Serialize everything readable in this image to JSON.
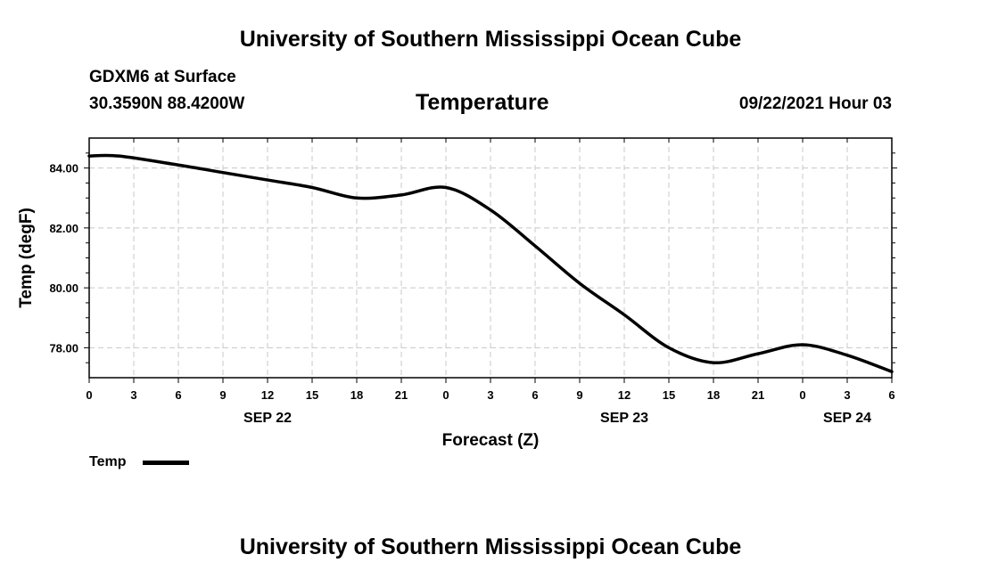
{
  "header": {
    "org_title_top": "University of Southern Mississippi Ocean Cube",
    "station": "GDXM6 at Surface",
    "coords": "30.3590N  88.4200W",
    "datetime": "09/22/2021 Hour 03",
    "org_title_bottom": "University of Southern Mississippi Ocean Cube"
  },
  "chart_data": {
    "type": "line",
    "title": "Temperature",
    "xlabel": "Forecast (Z)",
    "ylabel": "Temp (degF)",
    "x_unit": "forecast hours from 00Z SEP 22",
    "xlim": [
      0,
      54
    ],
    "ylim": [
      77.0,
      85.0
    ],
    "grid": true,
    "x_ticks": [
      {
        "x": 0,
        "label": "0"
      },
      {
        "x": 3,
        "label": "3"
      },
      {
        "x": 6,
        "label": "6"
      },
      {
        "x": 9,
        "label": "9"
      },
      {
        "x": 12,
        "label": "12"
      },
      {
        "x": 15,
        "label": "15"
      },
      {
        "x": 18,
        "label": "18"
      },
      {
        "x": 21,
        "label": "21"
      },
      {
        "x": 24,
        "label": "0"
      },
      {
        "x": 27,
        "label": "3"
      },
      {
        "x": 30,
        "label": "6"
      },
      {
        "x": 33,
        "label": "9"
      },
      {
        "x": 36,
        "label": "12"
      },
      {
        "x": 39,
        "label": "15"
      },
      {
        "x": 42,
        "label": "18"
      },
      {
        "x": 45,
        "label": "21"
      },
      {
        "x": 48,
        "label": "0"
      },
      {
        "x": 51,
        "label": "3"
      },
      {
        "x": 54,
        "label": "6"
      }
    ],
    "y_ticks": [
      {
        "y": 78,
        "label": "78.00"
      },
      {
        "y": 80,
        "label": "80.00"
      },
      {
        "y": 82,
        "label": "82.00"
      },
      {
        "y": 84,
        "label": "84.00"
      }
    ],
    "y_minor_ticks": [
      77.5,
      78.5,
      79.0,
      79.5,
      80.5,
      81.0,
      81.5,
      82.5,
      83.0,
      83.5,
      84.5
    ],
    "date_labels": [
      {
        "x": 12,
        "label": "SEP 22"
      },
      {
        "x": 36,
        "label": "SEP 23"
      },
      {
        "x": 51,
        "label": "SEP 24"
      }
    ],
    "series": [
      {
        "name": "Temp",
        "color": "#000000",
        "x": [
          0,
          2,
          6,
          9,
          12,
          15,
          18,
          21,
          24,
          27,
          30,
          33,
          36,
          39,
          42,
          45,
          48,
          51,
          54
        ],
        "y": [
          84.4,
          84.4,
          84.1,
          83.85,
          83.6,
          83.35,
          83.0,
          83.1,
          83.35,
          82.6,
          81.4,
          80.15,
          79.1,
          78.0,
          77.5,
          77.8,
          78.1,
          77.75,
          77.2
        ]
      }
    ]
  },
  "legend": {
    "label": "Temp"
  }
}
